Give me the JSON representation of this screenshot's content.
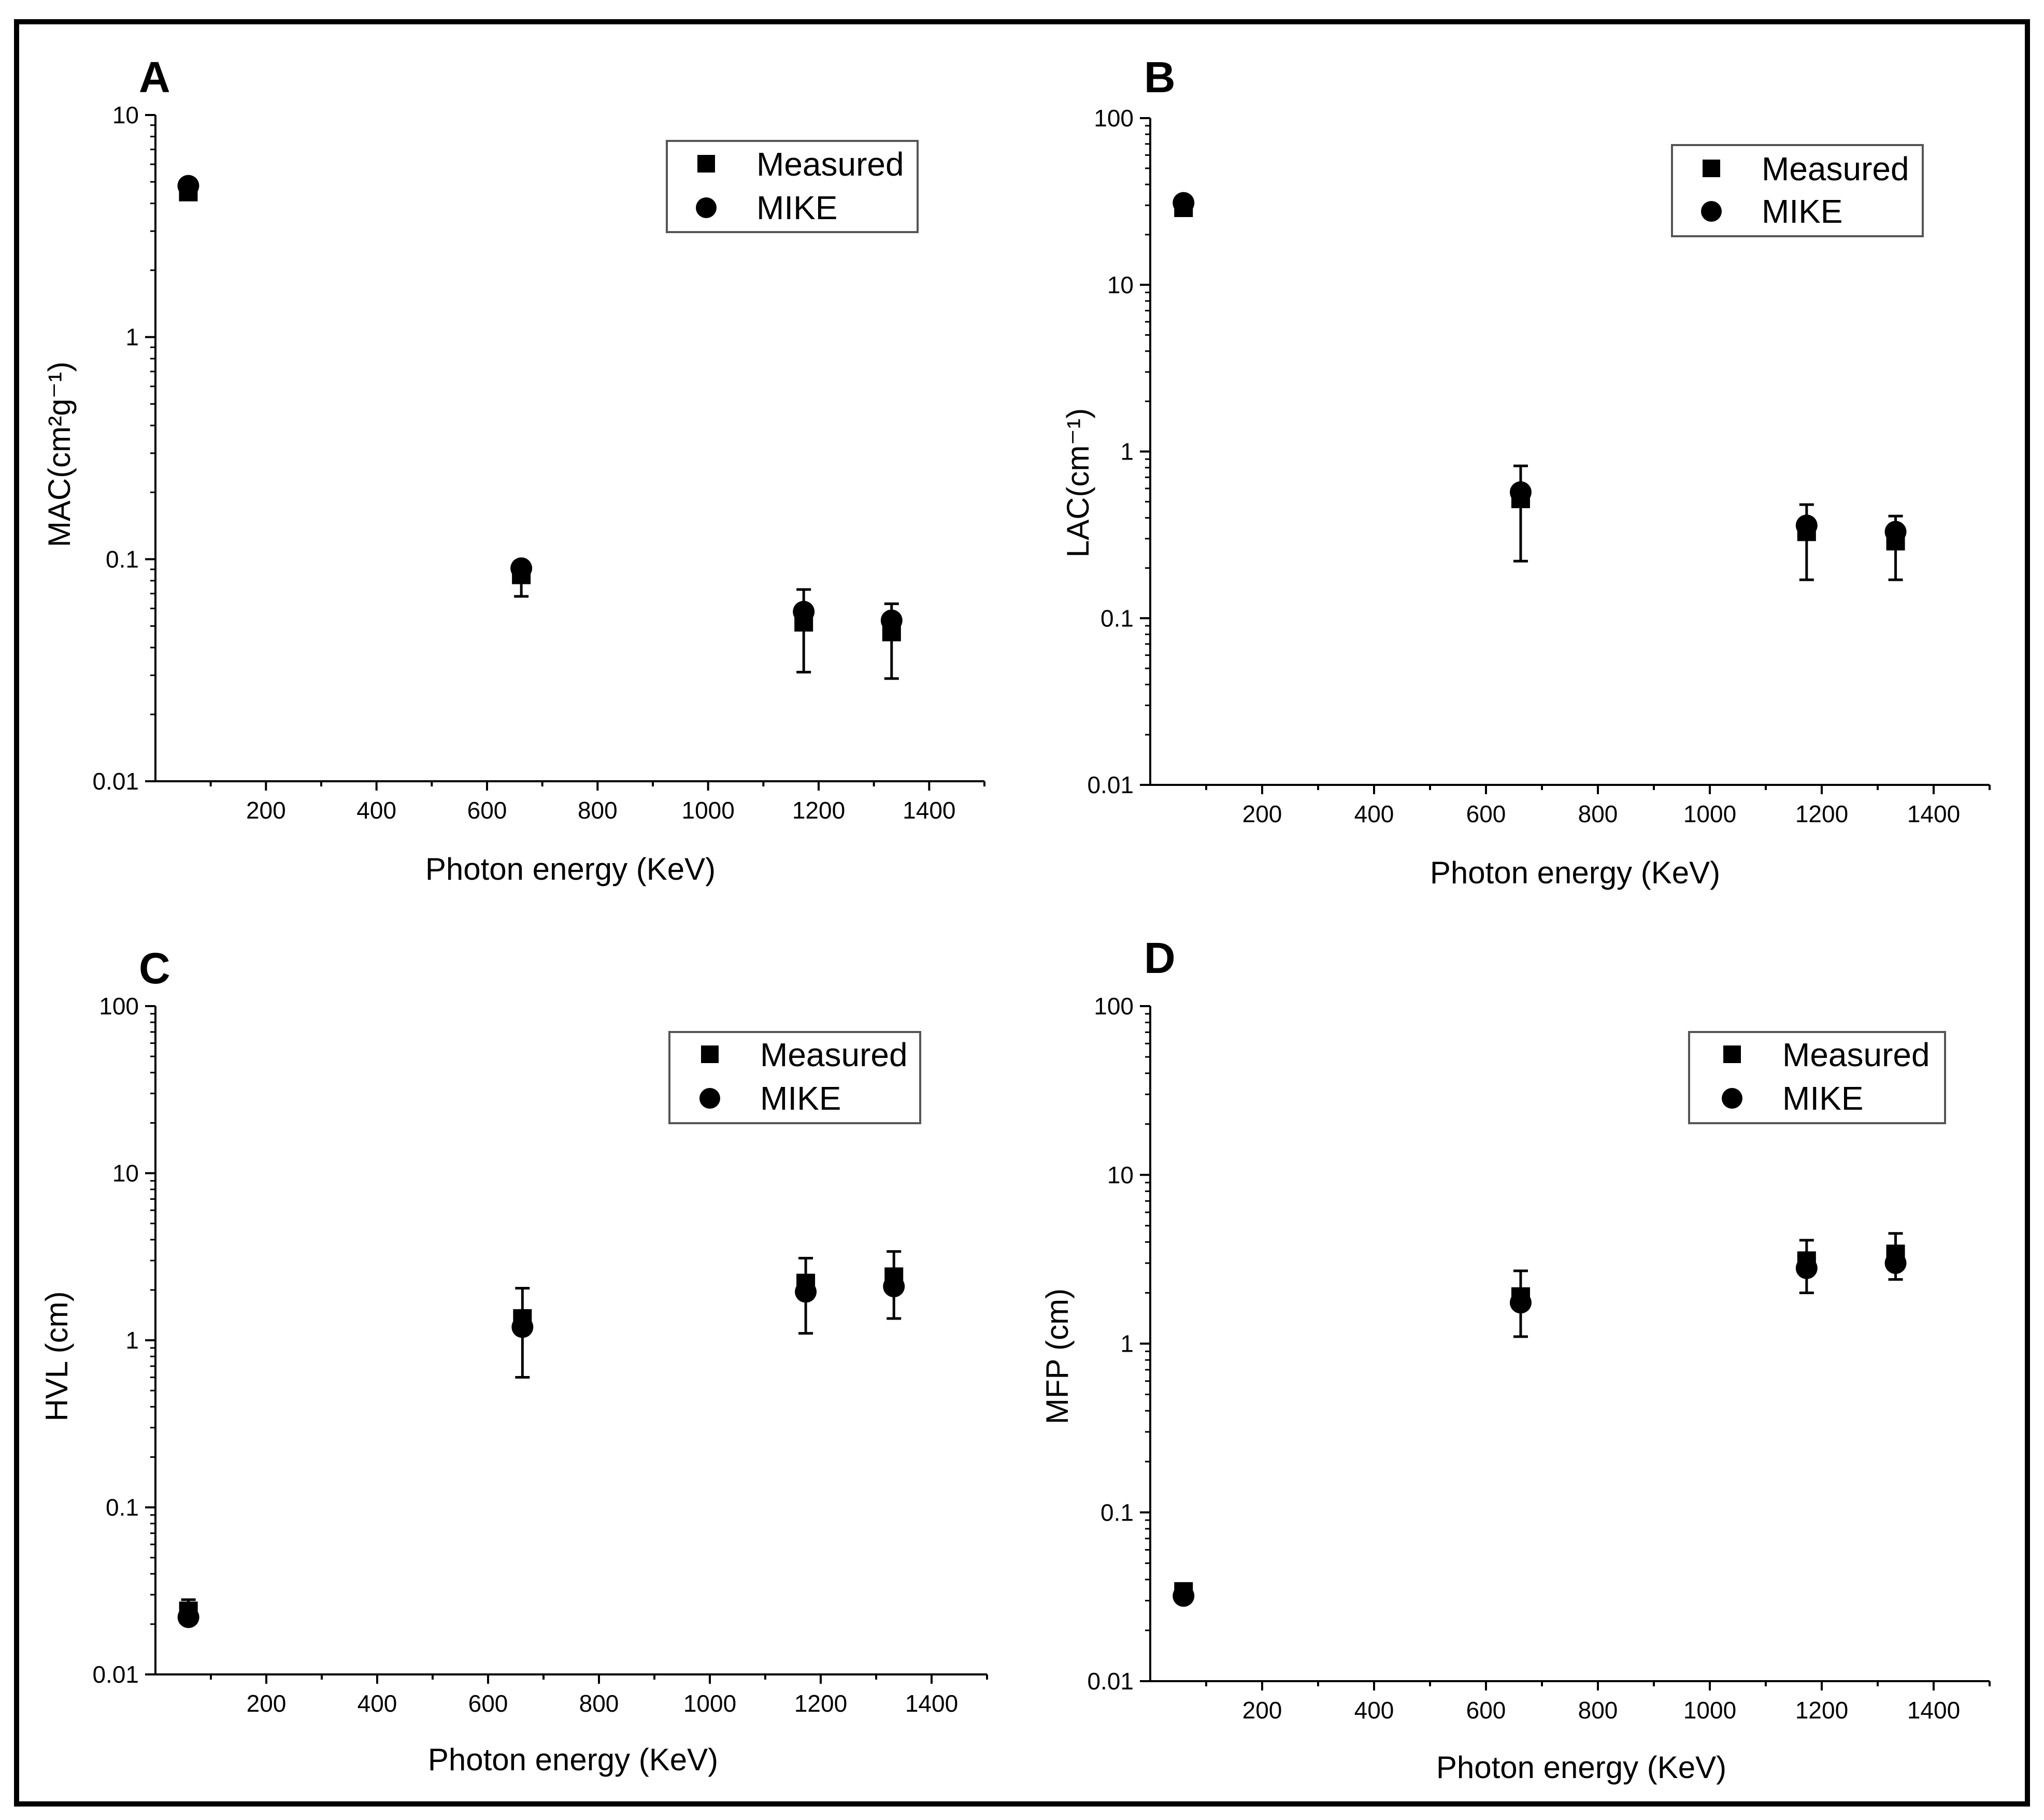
{
  "colors": {
    "background": "#ffffff",
    "frame": "#000000",
    "marker": "#000000",
    "legend_border": "#555555"
  },
  "chart_data": [
    {
      "panel": "A",
      "type": "scatter",
      "yscale": "log",
      "xlabel": "Photon energy (KeV)",
      "ylabel": "MAC(cm²g⁻¹)",
      "xlim": [
        0,
        1500
      ],
      "ylim": [
        0.01,
        10
      ],
      "xticks": [
        "200",
        "400",
        "600",
        "800",
        "1000",
        "1200",
        "1400"
      ],
      "xtick_values": [
        200,
        400,
        600,
        800,
        1000,
        1200,
        1400
      ],
      "yticks": [
        "0.01",
        "0.1",
        "1",
        "10"
      ],
      "ytick_values": [
        0.01,
        0.1,
        1,
        10
      ],
      "legend": [
        "Measured",
        "MIKE"
      ],
      "legend_position": "top-right",
      "series": [
        {
          "name": "Measured",
          "marker": "square",
          "x": [
            59.5,
            662,
            1173,
            1332
          ],
          "y": [
            4.5,
            0.085,
            0.052,
            0.047
          ],
          "err_low": [
            4.3,
            0.068,
            0.031,
            0.029
          ],
          "err_high": [
            4.7,
            0.095,
            0.073,
            0.063
          ]
        },
        {
          "name": "MIKE",
          "marker": "circle",
          "x": [
            59.5,
            662,
            1173,
            1332
          ],
          "y": [
            4.8,
            0.091,
            0.058,
            0.053
          ]
        }
      ]
    },
    {
      "panel": "B",
      "type": "scatter",
      "yscale": "log",
      "xlabel": "Photon energy (KeV)",
      "ylabel": "LAC(cm⁻¹)",
      "xlim": [
        0,
        1500
      ],
      "ylim": [
        0.01,
        100
      ],
      "xticks": [
        "200",
        "400",
        "600",
        "800",
        "1000",
        "1200",
        "1400"
      ],
      "xtick_values": [
        200,
        400,
        600,
        800,
        1000,
        1200,
        1400
      ],
      "yticks": [
        "0.01",
        "0.1",
        "1",
        "10",
        "100"
      ],
      "ytick_values": [
        0.01,
        0.1,
        1,
        10,
        100
      ],
      "legend": [
        "Measured",
        "MIKE"
      ],
      "legend_position": "top-right",
      "series": [
        {
          "name": "Measured",
          "marker": "square",
          "x": [
            59.5,
            662,
            1173,
            1332
          ],
          "y": [
            29,
            0.52,
            0.33,
            0.29
          ],
          "err_low": [
            27.5,
            0.22,
            0.17,
            0.17
          ],
          "err_high": [
            31,
            0.82,
            0.48,
            0.41
          ]
        },
        {
          "name": "MIKE",
          "marker": "circle",
          "x": [
            59.5,
            662,
            1173,
            1332
          ],
          "y": [
            31,
            0.57,
            0.36,
            0.33
          ]
        }
      ]
    },
    {
      "panel": "C",
      "type": "scatter",
      "yscale": "log",
      "xlabel": "Photon energy (KeV)",
      "ylabel": "HVL (cm)",
      "xlim": [
        0,
        1500
      ],
      "ylim": [
        0.01,
        100
      ],
      "xticks": [
        "200",
        "400",
        "600",
        "800",
        "1000",
        "1200",
        "1400"
      ],
      "xtick_values": [
        200,
        400,
        600,
        800,
        1000,
        1200,
        1400
      ],
      "yticks": [
        "0.01",
        "0.1",
        "1",
        "10",
        "100"
      ],
      "ytick_values": [
        0.01,
        0.1,
        1,
        10,
        100
      ],
      "legend": [
        "Measured",
        "MIKE"
      ],
      "legend_position": "top-right",
      "series": [
        {
          "name": "Measured",
          "marker": "square",
          "x": [
            59.5,
            662,
            1173,
            1332
          ],
          "y": [
            0.024,
            1.35,
            2.2,
            2.4
          ],
          "err_low": [
            0.02,
            0.6,
            1.1,
            1.35
          ],
          "err_high": [
            0.028,
            2.05,
            3.1,
            3.4
          ]
        },
        {
          "name": "MIKE",
          "marker": "circle",
          "x": [
            59.5,
            662,
            1173,
            1332
          ],
          "y": [
            0.022,
            1.2,
            1.95,
            2.1
          ]
        }
      ]
    },
    {
      "panel": "D",
      "type": "scatter",
      "yscale": "log",
      "xlabel": "Photon energy (KeV)",
      "ylabel": "MFP (cm)",
      "xlim": [
        0,
        1500
      ],
      "ylim": [
        0.01,
        100
      ],
      "xticks": [
        "200",
        "400",
        "600",
        "800",
        "1000",
        "1200",
        "1400"
      ],
      "xtick_values": [
        200,
        400,
        600,
        800,
        1000,
        1200,
        1400
      ],
      "yticks": [
        "0.01",
        "0.1",
        "1",
        "10",
        "100"
      ],
      "ytick_values": [
        0.01,
        0.1,
        1,
        10,
        100
      ],
      "legend": [
        "Measured",
        "MIKE"
      ],
      "legend_position": "top-right",
      "series": [
        {
          "name": "Measured",
          "marker": "square",
          "x": [
            59.5,
            662,
            1173,
            1332
          ],
          "y": [
            0.034,
            1.9,
            3.1,
            3.4
          ],
          "err_low": [
            0.032,
            1.1,
            2.0,
            2.4
          ],
          "err_high": [
            0.036,
            2.7,
            4.1,
            4.5
          ]
        },
        {
          "name": "MIKE",
          "marker": "circle",
          "x": [
            59.5,
            662,
            1173,
            1332
          ],
          "y": [
            0.032,
            1.75,
            2.8,
            3.0
          ]
        }
      ]
    }
  ]
}
